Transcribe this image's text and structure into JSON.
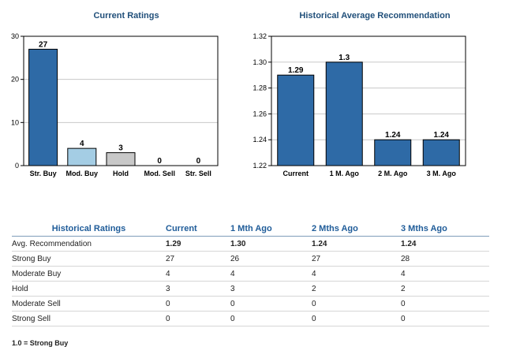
{
  "chart_data": [
    {
      "type": "bar",
      "title": "Current Ratings",
      "categories": [
        "Str. Buy",
        "Mod. Buy",
        "Hold",
        "Mod. Sell",
        "Str. Sell"
      ],
      "values": [
        27,
        4,
        3,
        0,
        0
      ],
      "data_labels": [
        "27",
        "4",
        "3",
        "0",
        "0"
      ],
      "colors": [
        "#2e6aa6",
        "#a4cde4",
        "#c8c8c8",
        "#c8c8c8",
        "#c8c8c8"
      ],
      "ylim": [
        0,
        30
      ],
      "yticks": [
        "0",
        "10",
        "20",
        "30"
      ],
      "ytick_values": [
        0,
        10,
        20,
        30
      ],
      "grid": true
    },
    {
      "type": "bar",
      "title": "Historical Average Recommendation",
      "categories": [
        "Current",
        "1 M. Ago",
        "2 M. Ago",
        "3 M. Ago"
      ],
      "values": [
        1.29,
        1.3,
        1.24,
        1.24
      ],
      "data_labels": [
        "1.29",
        "1.3",
        "1.24",
        "1.24"
      ],
      "colors": [
        "#2e6aa6",
        "#2e6aa6",
        "#2e6aa6",
        "#2e6aa6"
      ],
      "ylim": [
        1.22,
        1.32
      ],
      "yticks": [
        "1.22",
        "1.24",
        "1.26",
        "1.28",
        "1.30",
        "1.32"
      ],
      "ytick_values": [
        1.22,
        1.24,
        1.26,
        1.28,
        1.3,
        1.32
      ],
      "grid": true
    }
  ],
  "table": {
    "headers": [
      "Historical Ratings",
      "Current",
      "1 Mth Ago",
      "2 Mths Ago",
      "3 Mths Ago"
    ],
    "rows": [
      {
        "label": "Avg. Recommendation",
        "values": [
          "1.29",
          "1.30",
          "1.24",
          "1.24"
        ],
        "bold": true
      },
      {
        "label": "Strong Buy",
        "values": [
          "27",
          "26",
          "27",
          "28"
        ]
      },
      {
        "label": "Moderate Buy",
        "values": [
          "4",
          "4",
          "4",
          "4"
        ]
      },
      {
        "label": "Hold",
        "values": [
          "3",
          "3",
          "2",
          "2"
        ]
      },
      {
        "label": "Moderate Sell",
        "values": [
          "0",
          "0",
          "0",
          "0"
        ]
      },
      {
        "label": "Strong Sell",
        "values": [
          "0",
          "0",
          "0",
          "0"
        ]
      }
    ]
  },
  "footnote": "1.0 = Strong Buy",
  "colors": {
    "title": "#1f4e79",
    "header": "#1f5c99",
    "bar_stroke": "#000000",
    "grid": "#c8c8c8"
  }
}
